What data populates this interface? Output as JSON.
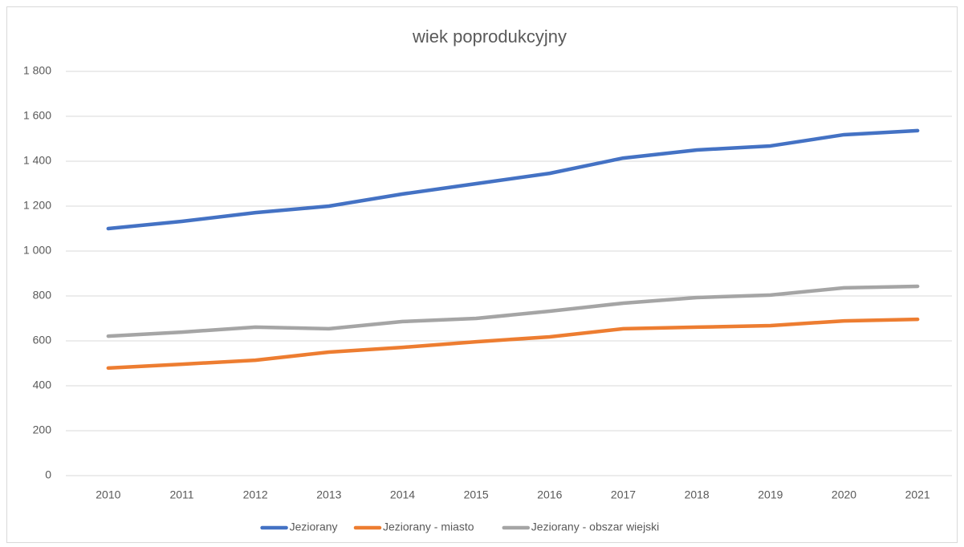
{
  "chart_data": {
    "type": "line",
    "title": "wiek poprodukcyjny",
    "categories": [
      "2010",
      "2011",
      "2012",
      "2013",
      "2014",
      "2015",
      "2016",
      "2017",
      "2018",
      "2019",
      "2020",
      "2021"
    ],
    "series": [
      {
        "name": "Jeziorany",
        "color": "#4472c4",
        "values": [
          1100,
          1132,
          1171,
          1200,
          1254,
          1300,
          1346,
          1414,
          1450,
          1468,
          1518,
          1536
        ]
      },
      {
        "name": "Jeziorany - miasto",
        "color": "#ed7d31",
        "values": [
          479,
          496,
          514,
          550,
          571,
          596,
          618,
          654,
          661,
          668,
          689,
          696
        ]
      },
      {
        "name": "Jeziorany - obszar wiejski",
        "color": "#a5a5a5",
        "values": [
          621,
          639,
          661,
          654,
          686,
          700,
          732,
          768,
          793,
          804,
          836,
          843
        ]
      }
    ],
    "ylim": [
      0,
      1800
    ],
    "yticks": [
      0,
      200,
      400,
      600,
      800,
      {
        "value": 1000,
        "label": "1 000"
      },
      {
        "value": 1200,
        "label": "1 200"
      },
      {
        "value": 1400,
        "label": "1 400"
      },
      {
        "value": 1600,
        "label": "1 600"
      },
      {
        "value": 1800,
        "label": "1 800"
      }
    ],
    "grid": true,
    "legend": "bottom"
  }
}
